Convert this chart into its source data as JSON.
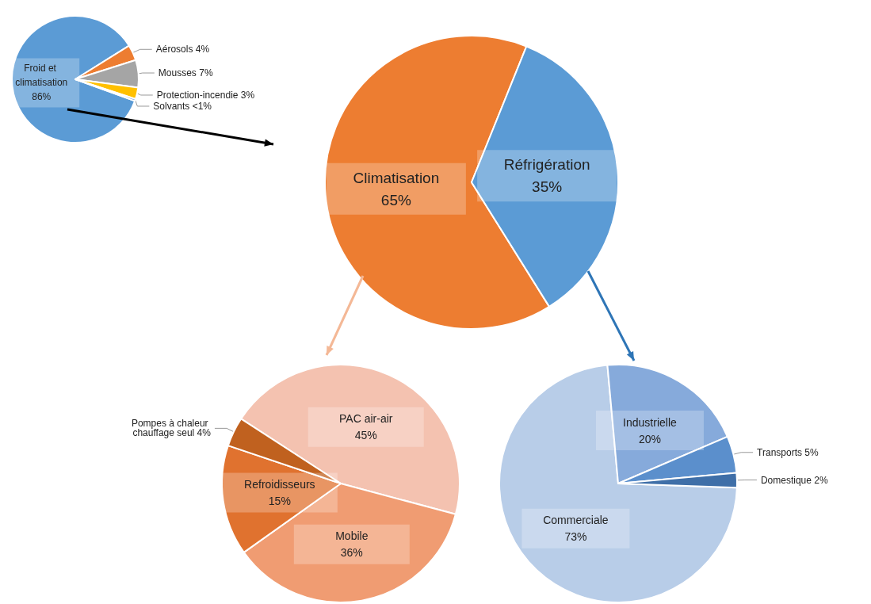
{
  "chart_data": [
    {
      "type": "pie",
      "categories": [
        "Froid et climatisation",
        "Aérosols",
        "Mousses",
        "Protection-incendie",
        "Solvants"
      ],
      "values": [
        86,
        4,
        7,
        3,
        0.5
      ],
      "value_labels": [
        "86%",
        "4%",
        "7%",
        "3%",
        "<1%"
      ],
      "colors": [
        "#5b9bd5",
        "#ed7d31",
        "#a5a5a5",
        "#ffc000",
        "#4472c4"
      ]
    },
    {
      "type": "pie",
      "categories": [
        "Climatisation",
        "Réfrigération"
      ],
      "values": [
        65,
        35
      ],
      "value_labels": [
        "65%",
        "35%"
      ],
      "colors": [
        "#ed7d31",
        "#5b9bd5"
      ]
    },
    {
      "type": "pie",
      "categories": [
        "PAC air-air",
        "Mobile",
        "Refroidisseurs",
        "Pompes à chaleur chauffage seul"
      ],
      "values": [
        45,
        36,
        15,
        4
      ],
      "value_labels": [
        "45%",
        "36%",
        "15%",
        "4%"
      ],
      "colors": [
        "#f4c2b0",
        "#f09c72",
        "#e0722f",
        "#c0611f"
      ]
    },
    {
      "type": "pie",
      "categories": [
        "Commerciale",
        "Industrielle",
        "Transports",
        "Domestique"
      ],
      "values": [
        73,
        20,
        5,
        2
      ],
      "value_labels": [
        "73%",
        "20%",
        "5%",
        "2%"
      ],
      "colors": [
        "#b8cde8",
        "#86aadb",
        "#5b8fcc",
        "#3f6fa8"
      ]
    }
  ]
}
